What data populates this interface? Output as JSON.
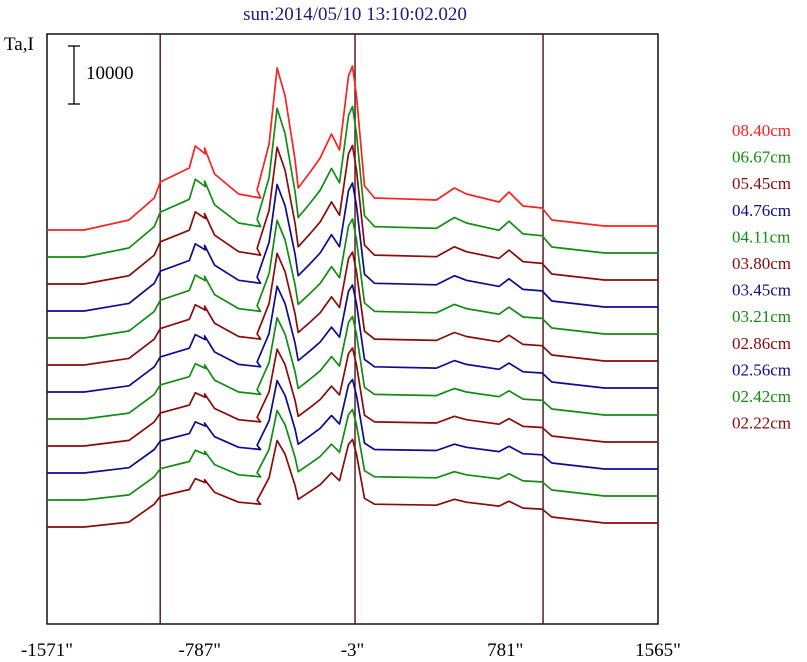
{
  "chart_data": {
    "type": "line",
    "title": "sun:2014/05/10 13:10:02.020",
    "ylabel": "Ta,I",
    "scale_bar": {
      "label": "10000",
      "value": 10000
    },
    "x_ticks": [
      {
        "value": -1571,
        "label": "-1571\""
      },
      {
        "value": -787,
        "label": "-787\""
      },
      {
        "value": -3,
        "label": "-3\""
      },
      {
        "value": 781,
        "label": "781\""
      },
      {
        "value": 1565,
        "label": "1565\""
      }
    ],
    "xlim": [
      -1571,
      1565
    ],
    "vertical_lines": [
      -990,
      10,
      975
    ],
    "grid": false,
    "legend_position": "right",
    "colors": {
      "red": "#ff2020",
      "green": "#128c12",
      "maroon": "#8b0a0a",
      "navy": "#0c0c90",
      "frame": "#000000",
      "divider": "#4a1010",
      "title": "#1a1a80"
    },
    "series": [
      {
        "name": "08.40cm",
        "color": "#ff2020",
        "offset": 0
      },
      {
        "name": "06.67cm",
        "color": "#128c12",
        "offset": 9
      },
      {
        "name": "05.45cm",
        "color": "#8b0a0a",
        "offset": 17
      },
      {
        "name": "04.76cm",
        "color": "#0c0c90",
        "offset": 24
      },
      {
        "name": "04.11cm",
        "color": "#128c12",
        "offset": 30
      },
      {
        "name": "03.80cm",
        "color": "#8b0a0a",
        "offset": 34
      },
      {
        "name": "03.45cm",
        "color": "#0c0c90",
        "offset": 38
      },
      {
        "name": "03.21cm",
        "color": "#128c12",
        "offset": 41
      },
      {
        "name": "02.86cm",
        "color": "#8b0a0a",
        "offset": 44
      },
      {
        "name": "02.56cm",
        "color": "#0c0c90",
        "offset": 47
      },
      {
        "name": "02.42cm",
        "color": "#128c12",
        "offset": 49
      },
      {
        "name": "02.22cm",
        "color": "#8b0a0a",
        "offset": 51
      }
    ]
  }
}
